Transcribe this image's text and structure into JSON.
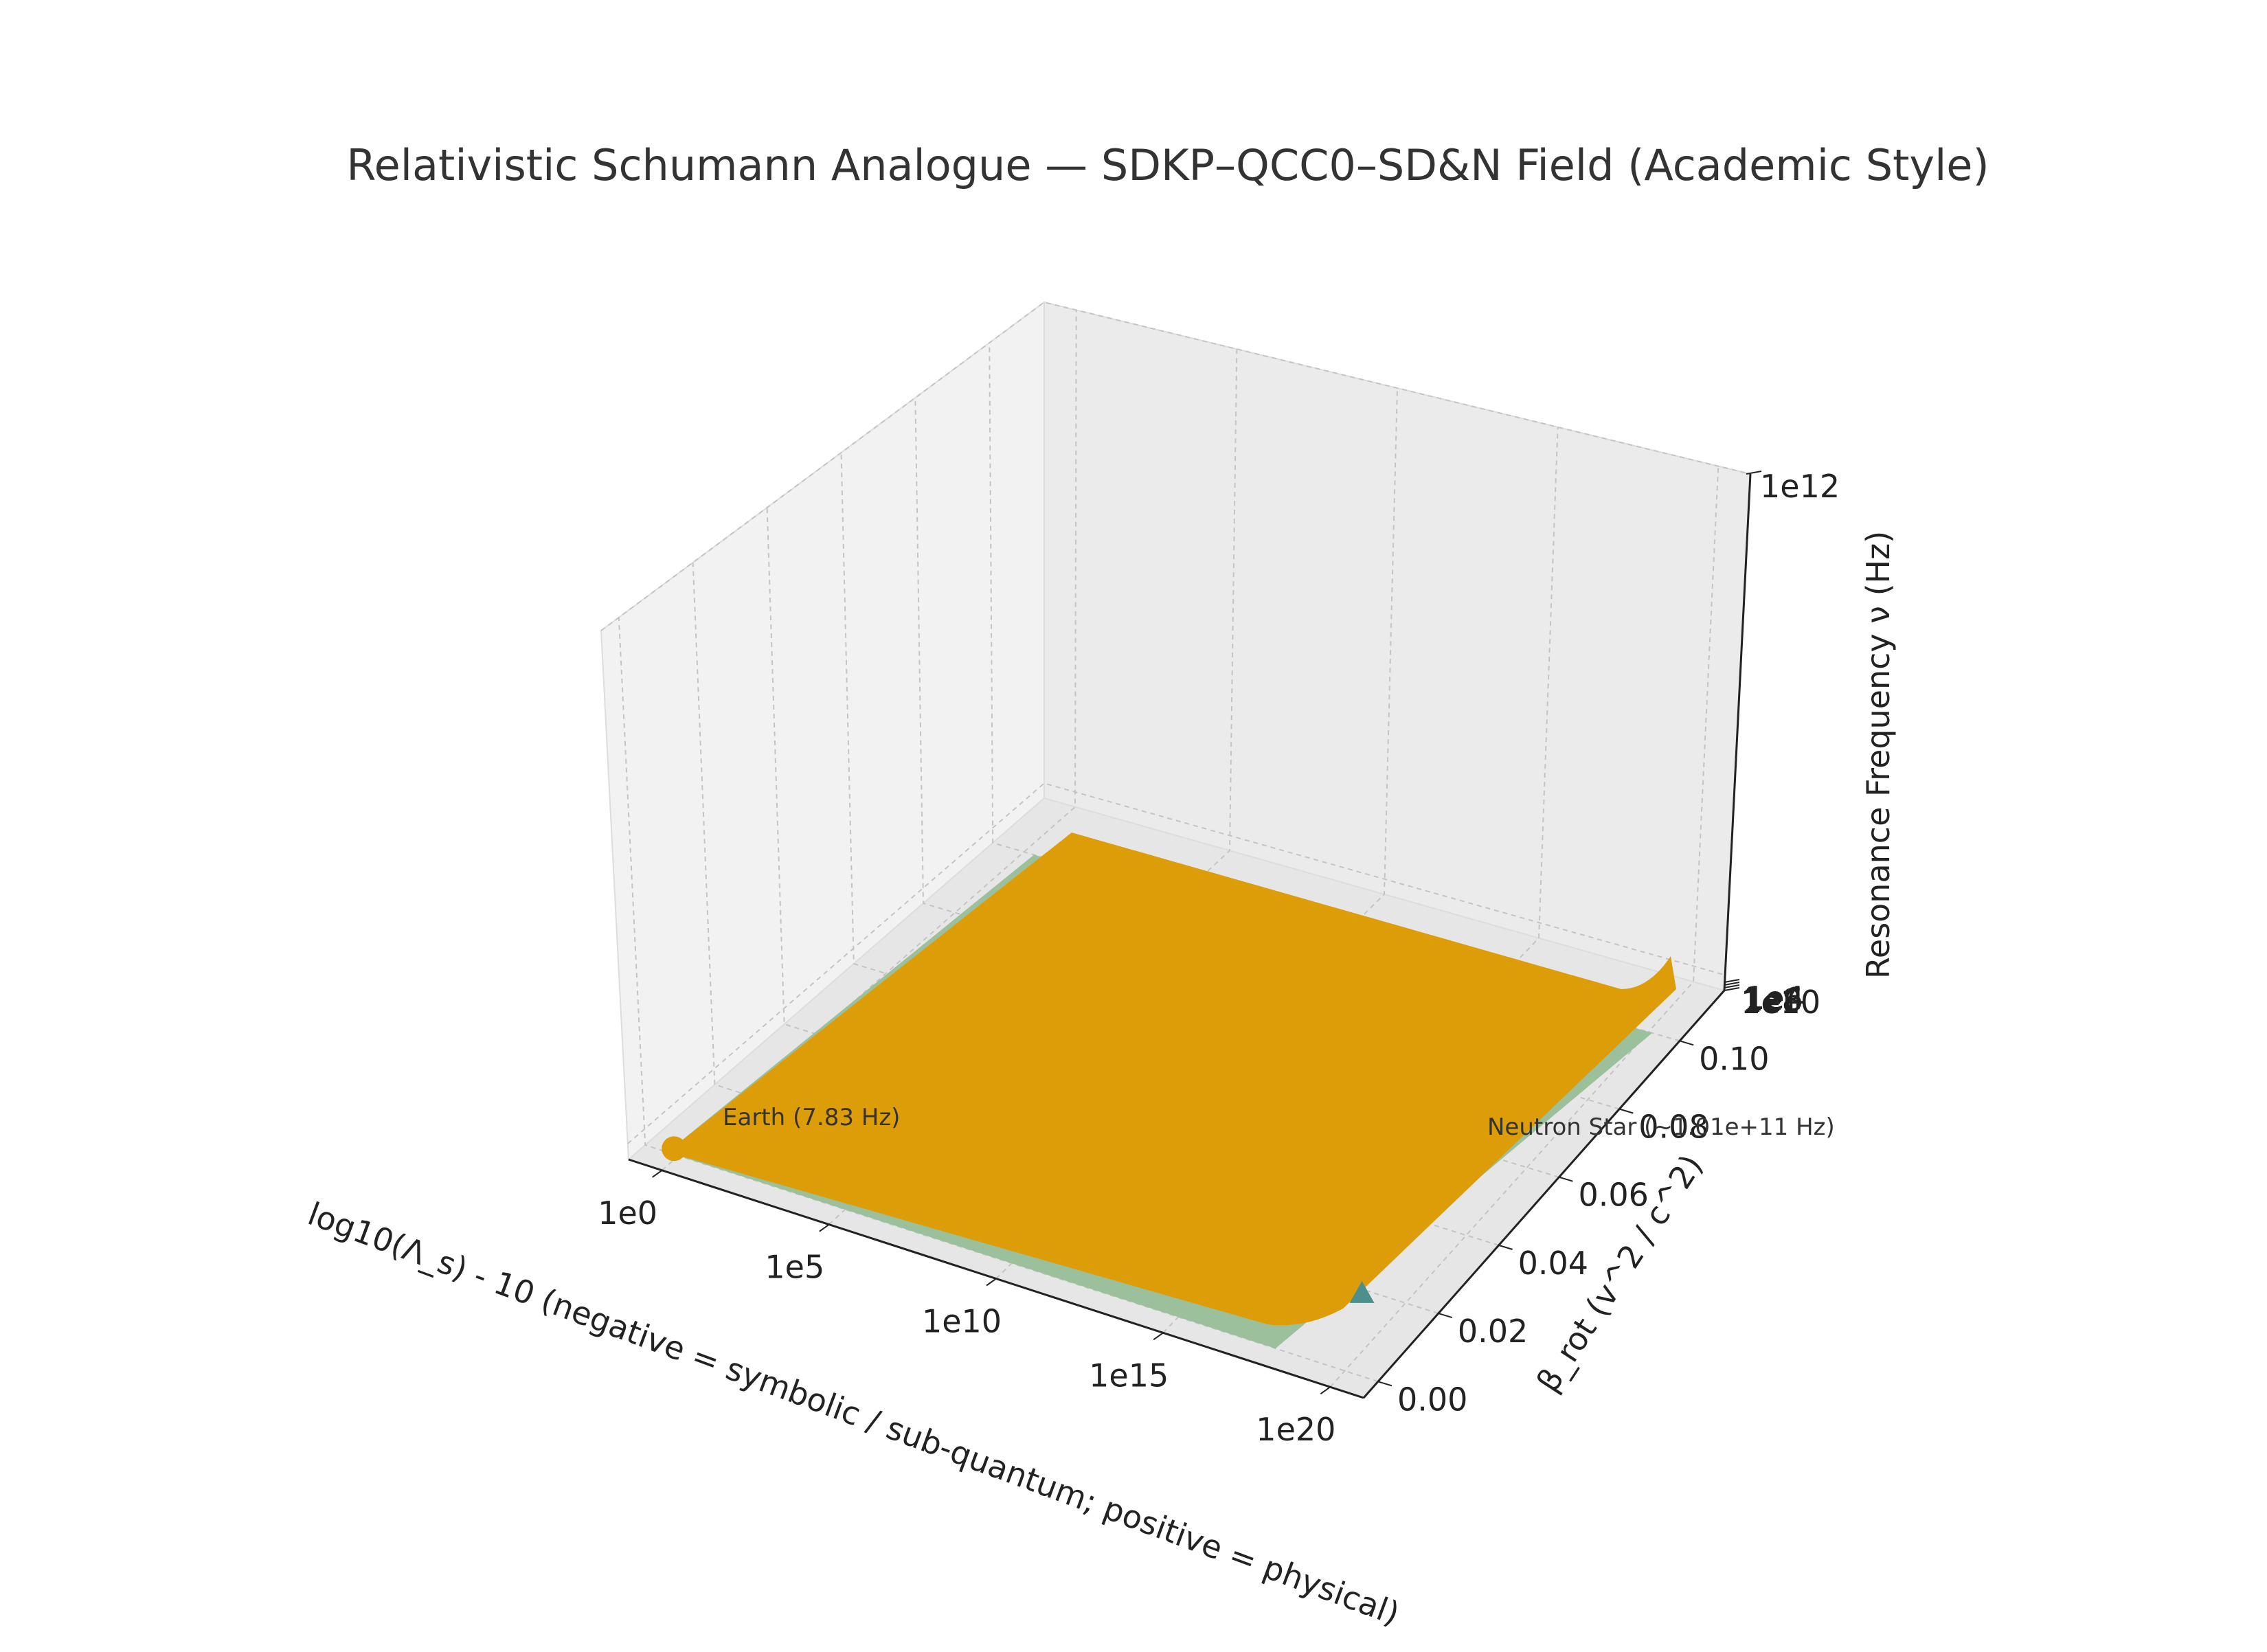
{
  "chart_data": {
    "type": "surface3d",
    "title": "Relativistic Schumann Analogue — SDKP–QCC0–SD&N Field (Academic Style)",
    "xlabel": "log10(Λ_s) - 10  (negative = symbolic / sub-quantum; positive = physical)",
    "ylabel": "β_rot (v^2 / c^2)",
    "zlabel": "Resonance Frequency ν (Hz)",
    "x_ticks": [
      "1e0",
      "1e5",
      "1e10",
      "1e15",
      "1e20"
    ],
    "x_tick_values": [
      1,
      100000,
      10000000000,
      1000000000000000.0,
      1e+20
    ],
    "y_ticks": [
      "0.00",
      "0.02",
      "0.04",
      "0.06",
      "0.08",
      "0.10"
    ],
    "y_tick_values": [
      0,
      0.02,
      0.04,
      0.06,
      0.08,
      0.1
    ],
    "z_ticks": [
      "1e12",
      "1e10",
      "1e8",
      "1e6",
      "1e4"
    ],
    "x_range": [
      0,
      1e+20
    ],
    "y_range": [
      0,
      0.11
    ],
    "series": [
      {
        "values": [
          [
            0,
            0,
            7.83
          ],
          [
            1e+20,
            0.1,
            10000000000
          ]
        ]
      }
    ],
    "annotations": [
      {
        "label": "Earth (7.83 Hz)",
        "x": 0,
        "y": 0,
        "z": 7.83,
        "marker": "circle"
      },
      {
        "label": "Neutron Star (~1.01e+11 Hz)",
        "x": 1e+20,
        "y": 0.07,
        "z": 101000000000,
        "marker": "triangle"
      }
    ],
    "colors": {
      "surface": "#dd9d08",
      "floor_surface": "#9bc09b",
      "marker_earth": "#dd9d08",
      "marker_ns": "#4e8f8b"
    },
    "grid": true
  }
}
